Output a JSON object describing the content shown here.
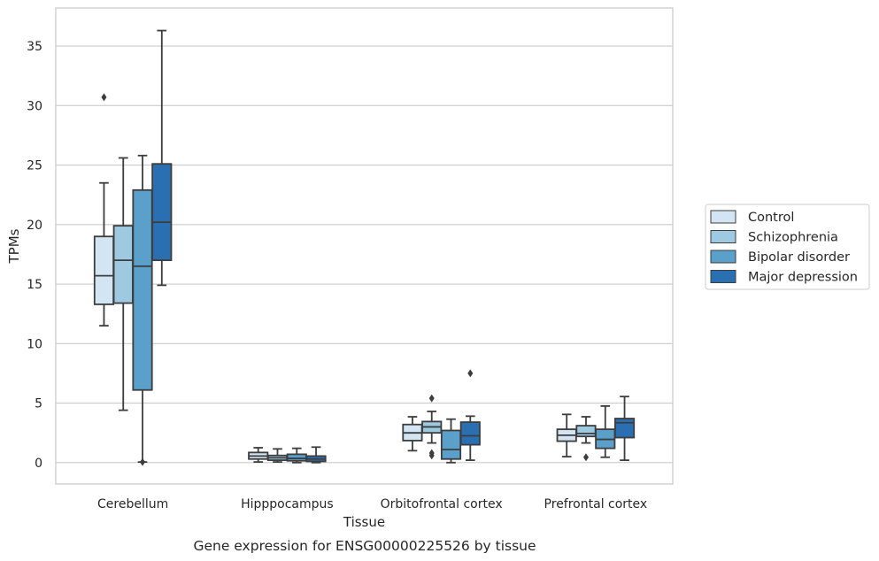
{
  "chart_data": {
    "type": "box",
    "caption": "Gene expression for ENSG00000225526 by tissue",
    "xlabel": "Tissue",
    "ylabel": "TPMs",
    "ylim": [
      -1.8,
      38.2
    ],
    "yticks": [
      0,
      5,
      10,
      15,
      20,
      25,
      30,
      35
    ],
    "grid": "horizontal",
    "legend_position": "right",
    "categories": [
      "Cerebellum",
      "Hipppocampus",
      "Orbitofrontal cortex",
      "Prefrontal cortex"
    ],
    "series": [
      {
        "name": "Control",
        "color": "#d3e4f3",
        "boxes": [
          {
            "whislo": 11.5,
            "q1": 13.3,
            "med": 15.7,
            "q3": 19.0,
            "whishi": 23.5,
            "fliers": [
              30.7
            ]
          },
          {
            "whislo": 0.05,
            "q1": 0.3,
            "med": 0.55,
            "q3": 0.85,
            "whishi": 1.25,
            "fliers": []
          },
          {
            "whislo": 1.0,
            "q1": 1.85,
            "med": 2.5,
            "q3": 3.2,
            "whishi": 3.85,
            "fliers": []
          },
          {
            "whislo": 0.5,
            "q1": 1.8,
            "med": 2.3,
            "q3": 2.8,
            "whishi": 4.05,
            "fliers": []
          }
        ]
      },
      {
        "name": "Schizophrenia",
        "color": "#9dc9e1",
        "boxes": [
          {
            "whislo": 4.4,
            "q1": 13.4,
            "med": 17.0,
            "q3": 19.9,
            "whishi": 25.6,
            "fliers": []
          },
          {
            "whislo": 0.05,
            "q1": 0.2,
            "med": 0.4,
            "q3": 0.6,
            "whishi": 1.15,
            "fliers": []
          },
          {
            "whislo": 1.65,
            "q1": 2.5,
            "med": 3.0,
            "q3": 3.45,
            "whishi": 4.3,
            "fliers": [
              5.4,
              0.8,
              0.6
            ]
          },
          {
            "whislo": 1.65,
            "q1": 2.2,
            "med": 2.45,
            "q3": 3.1,
            "whishi": 3.85,
            "fliers": [
              0.45
            ]
          }
        ]
      },
      {
        "name": "Bipolar disorder",
        "color": "#5b9fcb",
        "boxes": [
          {
            "whislo": 0.05,
            "q1": 6.1,
            "med": 16.5,
            "q3": 22.9,
            "whishi": 25.8,
            "fliers": [
              0.05
            ]
          },
          {
            "whislo": 0.0,
            "q1": 0.15,
            "med": 0.35,
            "q3": 0.7,
            "whishi": 1.2,
            "fliers": []
          },
          {
            "whislo": 0.0,
            "q1": 0.3,
            "med": 1.1,
            "q3": 2.7,
            "whishi": 3.65,
            "fliers": []
          },
          {
            "whislo": 0.45,
            "q1": 1.2,
            "med": 1.95,
            "q3": 2.8,
            "whishi": 4.75,
            "fliers": []
          }
        ]
      },
      {
        "name": "Major depression",
        "color": "#2a6fb1",
        "boxes": [
          {
            "whislo": 14.9,
            "q1": 17.0,
            "med": 20.2,
            "q3": 25.1,
            "whishi": 36.3,
            "fliers": []
          },
          {
            "whislo": 0.0,
            "q1": 0.1,
            "med": 0.3,
            "q3": 0.55,
            "whishi": 1.3,
            "fliers": []
          },
          {
            "whislo": 0.2,
            "q1": 1.5,
            "med": 2.25,
            "q3": 3.4,
            "whishi": 3.9,
            "fliers": [
              7.5
            ]
          },
          {
            "whislo": 0.2,
            "q1": 2.1,
            "med": 3.35,
            "q3": 3.7,
            "whishi": 5.55,
            "fliers": []
          }
        ]
      }
    ]
  }
}
